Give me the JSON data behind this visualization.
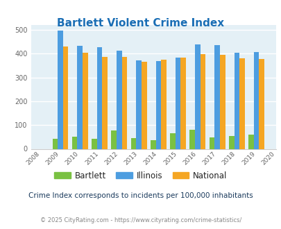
{
  "title": "Bartlett Violent Crime Index",
  "years": [
    2009,
    2010,
    2011,
    2012,
    2013,
    2014,
    2015,
    2016,
    2017,
    2018,
    2019
  ],
  "bartlett": [
    42,
    50,
    43,
    77,
    46,
    36,
    65,
    80,
    49,
    55,
    60
  ],
  "illinois": [
    498,
    434,
    427,
    414,
    373,
    370,
    384,
    438,
    437,
    405,
    408
  ],
  "national": [
    430,
    405,
    387,
    387,
    367,
    376,
    383,
    397,
    394,
    380,
    379
  ],
  "bartlett_color": "#7ac142",
  "illinois_color": "#4d9de0",
  "national_color": "#f5a623",
  "bg_color": "#e4f0f6",
  "title_color": "#1a6eb5",
  "subtitle": "Crime Index corresponds to incidents per 100,000 inhabitants",
  "footer": "© 2025 CityRating.com - https://www.cityrating.com/crime-statistics/",
  "ylim": [
    0,
    520
  ],
  "yticks": [
    0,
    100,
    200,
    300,
    400,
    500
  ],
  "bar_width": 0.27
}
